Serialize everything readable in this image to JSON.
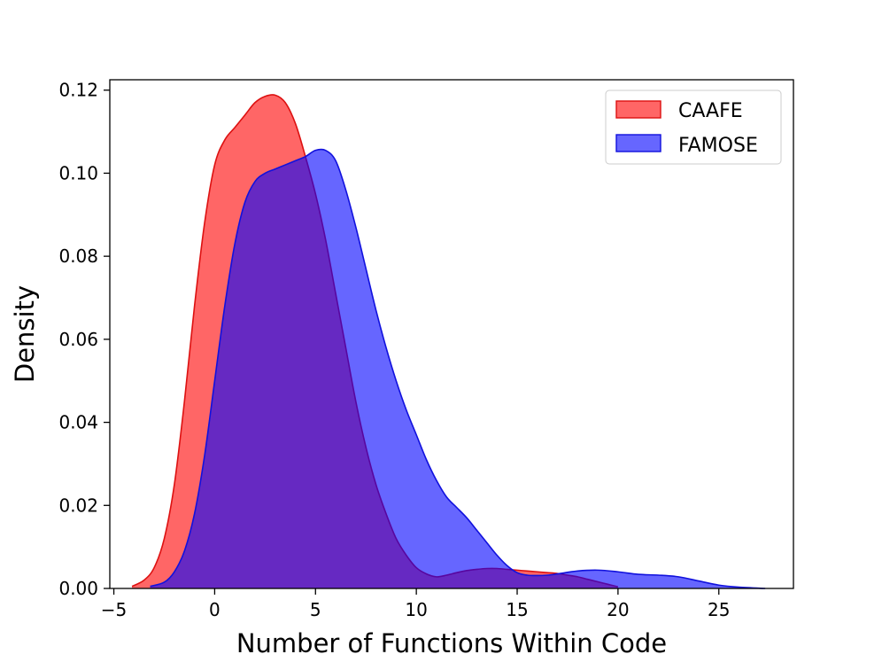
{
  "chart_data": {
    "type": "area",
    "title": "",
    "xlabel": "Number of Functions Within Code",
    "ylabel": "Density",
    "xlim": [
      -5.2,
      28.7
    ],
    "ylim": [
      0,
      0.1225
    ],
    "xticks": [
      -5,
      0,
      5,
      10,
      15,
      20,
      25
    ],
    "xtick_labels": [
      "−5",
      "0",
      "5",
      "10",
      "15",
      "20",
      "25"
    ],
    "yticks": [
      0.0,
      0.02,
      0.04,
      0.06,
      0.08,
      0.1,
      0.12
    ],
    "ytick_labels": [
      "0.00",
      "0.02",
      "0.04",
      "0.06",
      "0.08",
      "0.10",
      "0.12"
    ],
    "grid": false,
    "legend_position": "top-right",
    "series": [
      {
        "name": "CAAFE",
        "fill": "#ff0000",
        "stroke": "#dd1111",
        "opacity": 0.6,
        "x": [
          -4.1,
          -3.5,
          -3.0,
          -2.5,
          -2.0,
          -1.5,
          -1.0,
          -0.5,
          0.0,
          0.5,
          1.0,
          1.5,
          2.0,
          2.5,
          3.0,
          3.5,
          4.0,
          4.5,
          5.0,
          5.5,
          6.0,
          6.5,
          7.0,
          7.5,
          8.0,
          8.5,
          9.0,
          9.5,
          10.0,
          10.5,
          11.0,
          11.5,
          12.0,
          12.5,
          13.0,
          13.5,
          14.0,
          14.5,
          15.0,
          15.5,
          16.0,
          16.5,
          17.0,
          17.5,
          18.0,
          18.5,
          19.0,
          19.5,
          20.0
        ],
        "y": [
          0.0005,
          0.002,
          0.005,
          0.012,
          0.025,
          0.045,
          0.068,
          0.088,
          0.102,
          0.108,
          0.111,
          0.114,
          0.117,
          0.1185,
          0.1188,
          0.117,
          0.112,
          0.104,
          0.095,
          0.084,
          0.071,
          0.058,
          0.045,
          0.034,
          0.025,
          0.018,
          0.012,
          0.008,
          0.005,
          0.0035,
          0.0028,
          0.0032,
          0.0038,
          0.0043,
          0.0046,
          0.0048,
          0.0048,
          0.0046,
          0.0044,
          0.0042,
          0.004,
          0.0038,
          0.0036,
          0.0032,
          0.0028,
          0.0022,
          0.0016,
          0.001,
          0.0004
        ]
      },
      {
        "name": "FAMOSE",
        "fill": "#0000ff",
        "stroke": "#1111dd",
        "opacity": 0.6,
        "x": [
          -3.2,
          -2.5,
          -2.0,
          -1.5,
          -1.0,
          -0.5,
          0.0,
          0.5,
          1.0,
          1.5,
          2.0,
          2.5,
          3.0,
          3.5,
          4.0,
          4.5,
          5.0,
          5.5,
          6.0,
          6.5,
          7.0,
          7.5,
          8.0,
          8.5,
          9.0,
          9.5,
          10.0,
          10.5,
          11.0,
          11.5,
          12.0,
          12.5,
          13.0,
          13.5,
          14.0,
          14.5,
          15.0,
          15.5,
          16.0,
          16.5,
          17.0,
          18.0,
          19.0,
          20.0,
          21.0,
          22.0,
          23.0,
          24.0,
          25.0,
          26.0,
          27.3
        ],
        "y": [
          0.0005,
          0.0015,
          0.004,
          0.009,
          0.018,
          0.032,
          0.05,
          0.068,
          0.083,
          0.093,
          0.098,
          0.1,
          0.101,
          0.102,
          0.103,
          0.104,
          0.1055,
          0.1055,
          0.103,
          0.096,
          0.087,
          0.077,
          0.067,
          0.058,
          0.05,
          0.043,
          0.037,
          0.031,
          0.026,
          0.022,
          0.0195,
          0.017,
          0.014,
          0.011,
          0.008,
          0.0055,
          0.0038,
          0.0032,
          0.0031,
          0.0032,
          0.0035,
          0.0042,
          0.0044,
          0.004,
          0.0034,
          0.0032,
          0.0028,
          0.0018,
          0.0008,
          0.0003,
          0.0
        ]
      }
    ]
  }
}
